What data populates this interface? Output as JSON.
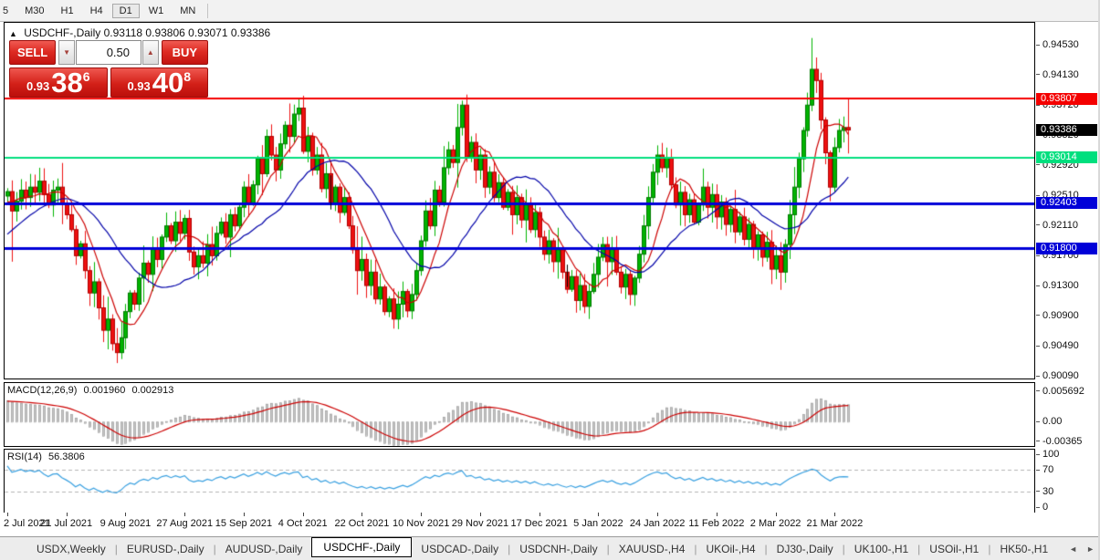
{
  "toolbar": {
    "items": [
      {
        "label": "5",
        "active": false
      },
      {
        "label": "M30",
        "active": false
      },
      {
        "label": "H1",
        "active": false
      },
      {
        "label": "H4",
        "active": false
      },
      {
        "label": "D1",
        "active": true
      },
      {
        "label": "W1",
        "active": false
      },
      {
        "label": "MN",
        "active": false
      }
    ]
  },
  "chart_header": {
    "collapse_icon": "▲",
    "symbol": "USDCHF-,Daily",
    "ohlc": "0.93118 0.93806 0.93071 0.93386"
  },
  "trade_panel": {
    "sell_label": "SELL",
    "buy_label": "BUY",
    "volume": "0.50",
    "spinner_down_icon": "▼",
    "spinner_up_icon": "▲",
    "sell_price": {
      "prefix": "0.93",
      "big": "38",
      "sup": "6"
    },
    "buy_price": {
      "prefix": "0.93",
      "big": "40",
      "sup": "8"
    }
  },
  "price_scale": {
    "main_ticks": [
      "0.94530",
      "0.94130",
      "0.93720",
      "0.93320",
      "0.92920",
      "0.92510",
      "0.92110",
      "0.91700",
      "0.91300",
      "0.90900",
      "0.90490",
      "0.90090"
    ],
    "chips": [
      {
        "text": "0.93807",
        "price": 0.93807,
        "bg": "#f40000",
        "fg": "#ffffff"
      },
      {
        "text": "0.93386",
        "price": 0.93386,
        "bg": "#000000",
        "fg": "#ffffff"
      },
      {
        "text": "0.93014",
        "price": 0.93014,
        "bg": "#00df7e",
        "fg": "#ffffff"
      },
      {
        "text": "0.92403",
        "price": 0.92403,
        "bg": "#0000d8",
        "fg": "#ffffff"
      },
      {
        "text": "0.91800",
        "price": 0.918,
        "bg": "#0000d8",
        "fg": "#ffffff"
      }
    ],
    "macd_ticks": [
      {
        "text": "0.005692",
        "value": 0.005692
      },
      {
        "text": "0.00",
        "value": 0
      },
      {
        "text": "-0.00365",
        "value": -0.00365
      }
    ],
    "rsi_ticks": [
      {
        "text": "100",
        "value": 100
      },
      {
        "text": "70",
        "value": 70
      },
      {
        "text": "30",
        "value": 30
      },
      {
        "text": "0",
        "value": 0
      }
    ]
  },
  "chart_data": {
    "type": "candlestick",
    "symbol": "USDCHF-",
    "timeframe": "Daily",
    "ohlc_display": {
      "open": "0.93118",
      "high": "0.93806",
      "low": "0.93071",
      "close": "0.93386"
    },
    "ylim": [
      0.90053,
      0.94824
    ],
    "levels": [
      {
        "price": 0.93807,
        "color": "#f40000",
        "width": 2
      },
      {
        "price": 0.93014,
        "color": "#00df7e",
        "width": 2
      },
      {
        "price": 0.92403,
        "color": "#0000d8",
        "width": 3
      },
      {
        "price": 0.918,
        "color": "#0000d8",
        "width": 3
      }
    ],
    "date_labels": [
      "2 Jul 2021",
      "21 Jul 2021",
      "9 Aug 2021",
      "27 Aug 2021",
      "15 Sep 2021",
      "4 Oct 2021",
      "22 Oct 2021",
      "10 Nov 2021",
      "29 Nov 2021",
      "17 Dec 2021",
      "5 Jan 2022",
      "24 Jan 2022",
      "11 Feb 2022",
      "2 Mar 2022",
      "21 Mar 2022"
    ],
    "candles_per_date_tick": 13,
    "first_open": 0.925,
    "closes": [
      0.9256,
      0.923,
      0.9243,
      0.9258,
      0.9248,
      0.9262,
      0.9255,
      0.927,
      0.9252,
      0.9238,
      0.9258,
      0.9262,
      0.924,
      0.9225,
      0.9205,
      0.917,
      0.9186,
      0.915,
      0.912,
      0.9135,
      0.91,
      0.907,
      0.9085,
      0.9052,
      0.904,
      0.906,
      0.9095,
      0.912,
      0.9105,
      0.914,
      0.916,
      0.9145,
      0.918,
      0.9165,
      0.9195,
      0.921,
      0.919,
      0.9215,
      0.92,
      0.922,
      0.9175,
      0.9155,
      0.917,
      0.916,
      0.9185,
      0.917,
      0.92,
      0.9215,
      0.9195,
      0.9225,
      0.921,
      0.9235,
      0.9262,
      0.924,
      0.9265,
      0.93,
      0.928,
      0.933,
      0.9305,
      0.9285,
      0.932,
      0.9345,
      0.933,
      0.936,
      0.9368,
      0.931,
      0.933,
      0.9285,
      0.9305,
      0.926,
      0.928,
      0.924,
      0.9262,
      0.9228,
      0.9248,
      0.921,
      0.9178,
      0.915,
      0.9165,
      0.913,
      0.9148,
      0.9112,
      0.9128,
      0.9095,
      0.9112,
      0.9085,
      0.9105,
      0.9122,
      0.9096,
      0.9118,
      0.915,
      0.919,
      0.923,
      0.921,
      0.9258,
      0.9242,
      0.9288,
      0.9312,
      0.9295,
      0.9342,
      0.9372,
      0.9302,
      0.9322,
      0.9285,
      0.9305,
      0.9262,
      0.9282,
      0.9248,
      0.9268,
      0.9235,
      0.9255,
      0.9225,
      0.9248,
      0.9218,
      0.9238,
      0.9205,
      0.9228,
      0.9195,
      0.9172,
      0.919,
      0.9162,
      0.9178,
      0.9148,
      0.9125,
      0.9142,
      0.911,
      0.913,
      0.9102,
      0.9122,
      0.9145,
      0.9168,
      0.9185,
      0.9162,
      0.918,
      0.9148,
      0.9128,
      0.9145,
      0.9118,
      0.914,
      0.9172,
      0.921,
      0.9248,
      0.9282,
      0.9305,
      0.9288,
      0.9302,
      0.9265,
      0.9238,
      0.9255,
      0.9225,
      0.9245,
      0.9215,
      0.9238,
      0.9262,
      0.9235,
      0.9252,
      0.9222,
      0.9242,
      0.9212,
      0.9232,
      0.9202,
      0.9222,
      0.9192,
      0.9212,
      0.918,
      0.9198,
      0.9168,
      0.9188,
      0.9152,
      0.917,
      0.9148,
      0.9185,
      0.9225,
      0.9262,
      0.93,
      0.9338,
      0.9372,
      0.942,
      0.9405,
      0.9352,
      0.9308,
      0.9262,
      0.9315,
      0.9338,
      0.9342,
      0.93386
    ],
    "warmup_closes": [
      0.9055,
      0.9042,
      0.906,
      0.9075,
      0.9068,
      0.9085,
      0.91,
      0.9092,
      0.911,
      0.9125,
      0.9118,
      0.9135,
      0.915,
      0.9142,
      0.916,
      0.9175,
      0.9168,
      0.9185,
      0.9178,
      0.9195,
      0.921,
      0.9202,
      0.9218,
      0.923,
      0.9222,
      0.9238,
      0.9248,
      0.9242,
      0.9252,
      0.925
    ],
    "last_candle": {
      "open": 0.9342,
      "high": 0.93806,
      "low": 0.93071,
      "close": 0.93386
    },
    "wick_overrides": {
      "1": {
        "low": 0.9162
      },
      "7": {
        "high": 0.9288
      },
      "24": {
        "low": 0.9026
      },
      "100": {
        "high": 0.9378
      },
      "143": {
        "high": 0.9318
      },
      "145": {
        "high": 0.9315
      },
      "177": {
        "high": 0.9462
      },
      "181": {
        "low": 0.9243
      }
    },
    "objects": [
      {
        "type": "vertical-segment",
        "index": 71,
        "price_from": 0.9278,
        "price_to": 0.9232,
        "color": "#000000"
      },
      {
        "type": "vertical-segment",
        "index": 123,
        "price_from": 0.9158,
        "price_to": 0.9128,
        "color": "#000000"
      }
    ],
    "colors": {
      "up": "#00b400",
      "up_border": "#007800",
      "down": "#ee1111",
      "down_border": "#b00000",
      "ma_fast": "#cc0000",
      "ma_slow": "#0000a8",
      "macd_hist": "#c6c6c6",
      "macd_hist_border": "#9e9e9e",
      "macd_signal": "#cc0000",
      "rsi_line": "#39a0e0",
      "guide": "#b5b5b5",
      "level_red": "#f40000",
      "level_teal": "#00df7e",
      "level_blue": "#0000d8"
    },
    "macd": {
      "label": "MACD(12,26,9)",
      "main_value": "0.001960",
      "signal_value": "0.002913",
      "ylim": [
        -0.00452,
        0.00719
      ]
    },
    "rsi": {
      "label": "RSI(14)",
      "value": "56.3806",
      "guides": [
        70,
        30
      ],
      "ylim": [
        -10,
        108.5
      ]
    }
  },
  "tabbar": {
    "tabs": [
      {
        "label": "USDX,Weekly",
        "active": false
      },
      {
        "label": "EURUSD-,Daily",
        "active": false
      },
      {
        "label": "AUDUSD-,Daily",
        "active": false
      },
      {
        "label": "USDCHF-,Daily",
        "active": true
      },
      {
        "label": "USDCAD-,Daily",
        "active": false
      },
      {
        "label": "USDCNH-,Daily",
        "active": false
      },
      {
        "label": "XAUUSD-,H4",
        "active": false
      },
      {
        "label": "UKOil-,H4",
        "active": false
      },
      {
        "label": "DJ30-,Daily",
        "active": false
      },
      {
        "label": "UK100-,H1",
        "active": false
      },
      {
        "label": "USOil-,H1",
        "active": false
      },
      {
        "label": "HK50-,H1",
        "active": false
      }
    ],
    "scroll_left_icon": "◄",
    "scroll_right_icon": "►"
  }
}
